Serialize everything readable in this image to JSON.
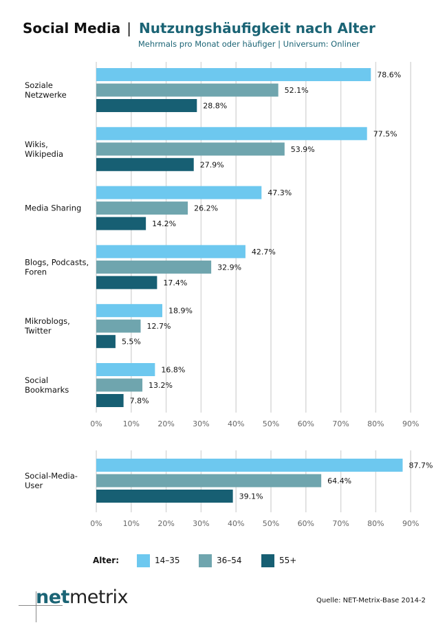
{
  "title": {
    "main": "Social Media",
    "separator": "|",
    "accent": "Nutzungshäufigkeit nach Alter",
    "subtitle": "Mehrmals pro Monat oder häufiger | Universum: Onliner"
  },
  "legend": {
    "title": "Alter:",
    "items": [
      {
        "label": "14–35",
        "color": "#6dc8ef"
      },
      {
        "label": "36–54",
        "color": "#6fa5ae"
      },
      {
        "label": "55+",
        "color": "#175f73"
      }
    ]
  },
  "logo": {
    "net": "net",
    "metrix": "metrix"
  },
  "source": "Quelle: NET-Metrix-Base 2014-2",
  "chart_data": [
    {
      "type": "bar",
      "orientation": "horizontal",
      "categories": [
        "Soziale\nNetzwerke",
        "Wikis,\nWikipedia",
        "Media Sharing",
        "Blogs, Podcasts,\nForen",
        "Mikroblogs,\nTwitter",
        "Social\nBookmarks"
      ],
      "series": [
        {
          "name": "14–35",
          "color": "#6dc8ef",
          "values": [
            78.6,
            77.5,
            47.3,
            42.7,
            18.9,
            16.8
          ]
        },
        {
          "name": "36–54",
          "color": "#6fa5ae",
          "values": [
            52.1,
            53.9,
            26.2,
            32.9,
            12.7,
            13.2
          ]
        },
        {
          "name": "55+",
          "color": "#175f73",
          "values": [
            28.8,
            27.9,
            14.2,
            17.4,
            5.5,
            7.8
          ]
        }
      ],
      "xlim": [
        0,
        90
      ],
      "xticks": [
        "0%",
        "10%",
        "20%",
        "30%",
        "40%",
        "50%",
        "60%",
        "70%",
        "80%",
        "90%"
      ],
      "value_format": "%",
      "grid": "vertical"
    },
    {
      "type": "bar",
      "orientation": "horizontal",
      "categories": [
        "Social-Media-\nUser"
      ],
      "series": [
        {
          "name": "14–35",
          "color": "#6dc8ef",
          "values": [
            87.7
          ]
        },
        {
          "name": "36–54",
          "color": "#6fa5ae",
          "values": [
            64.4
          ]
        },
        {
          "name": "55+",
          "color": "#175f73",
          "values": [
            39.1
          ]
        }
      ],
      "xlim": [
        0,
        90
      ],
      "xticks": [
        "0%",
        "10%",
        "20%",
        "30%",
        "40%",
        "50%",
        "60%",
        "70%",
        "80%",
        "90%"
      ],
      "value_format": "%",
      "grid": "vertical"
    }
  ]
}
